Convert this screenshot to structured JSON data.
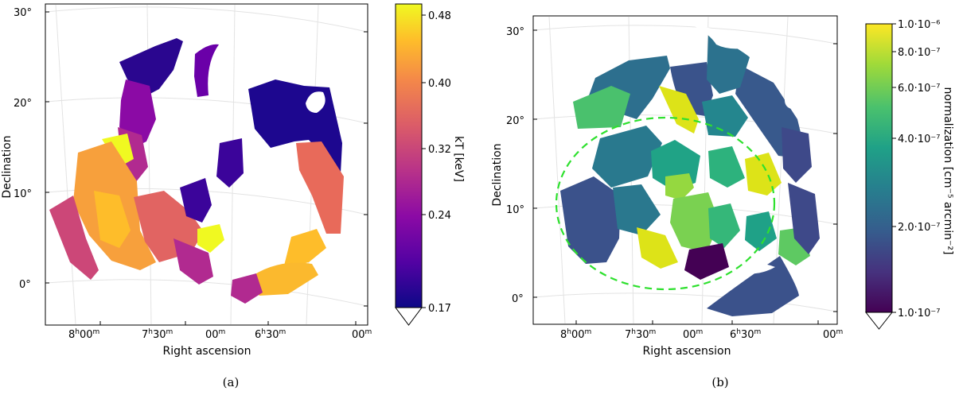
{
  "chart_data": [
    {
      "type": "heatmap",
      "panel_label": "(a)",
      "xlabel": "Right ascension",
      "ylabel": "Declination",
      "x_ticks": [
        {
          "h": "8",
          "m": "00",
          "suffix": "m"
        },
        {
          "h": "7",
          "m": "30",
          "suffix": "m"
        },
        {
          "h": "",
          "m": "00",
          "suffix": "m"
        },
        {
          "h": "6",
          "m": "30",
          "suffix": "m"
        },
        {
          "h": "",
          "m": "00",
          "suffix": "m"
        }
      ],
      "y_ticks": [
        "30°",
        "20°",
        "10°",
        "0°"
      ],
      "colorbar": {
        "label": "kT [keV]",
        "colormap": "plasma",
        "ticks": [
          "0.48",
          "0.40",
          "0.32",
          "0.24",
          "0.17"
        ],
        "range": [
          0.17,
          0.5
        ],
        "extend": "min"
      }
    },
    {
      "type": "heatmap",
      "panel_label": "(b)",
      "xlabel": "Right ascension",
      "ylabel": "Declination",
      "x_ticks": [
        {
          "h": "8",
          "m": "00",
          "suffix": "m"
        },
        {
          "h": "7",
          "m": "30",
          "suffix": "m"
        },
        {
          "h": "",
          "m": "00",
          "suffix": "m"
        },
        {
          "h": "6",
          "m": "30",
          "suffix": "m"
        },
        {
          "h": "",
          "m": "00",
          "suffix": "m"
        }
      ],
      "y_ticks": [
        "30°",
        "20°",
        "10°",
        "0°"
      ],
      "colorbar": {
        "label": "normalization [cm⁻⁵ arcmin⁻²]",
        "colormap": "viridis",
        "scale": "log",
        "ticks": [
          "1.0·10⁻⁶",
          "8.0·10⁻⁷",
          "6.0·10⁻⁷",
          "4.0·10⁻⁷",
          "2.0·10⁻⁷",
          "1.0·10⁻⁷"
        ],
        "range": [
          1e-07,
          1e-06
        ],
        "extend": "min"
      },
      "annotation": "dashed green circle"
    }
  ]
}
